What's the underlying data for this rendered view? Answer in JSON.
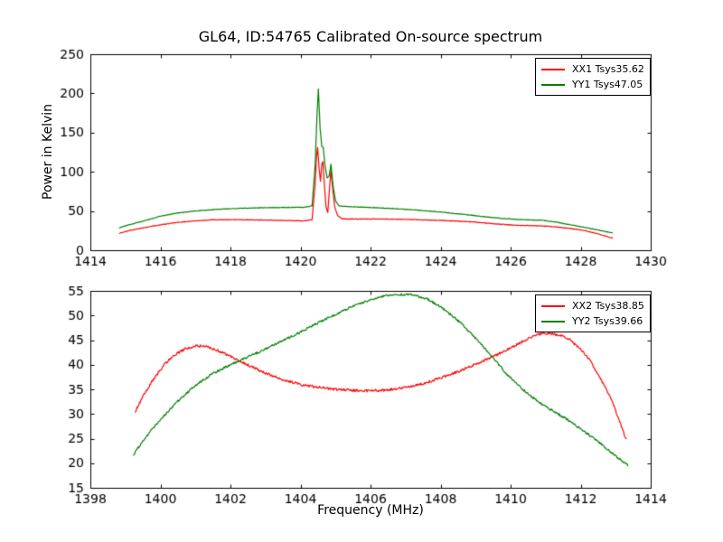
{
  "figure": {
    "title": "GL64, ID:54765 Calibrated On-source spectrum",
    "background_color": "#ffffff",
    "axes_color": "#000000",
    "xx_color": "#ff0000",
    "yy_color": "#008000"
  },
  "chart_data": [
    {
      "type": "line",
      "panel": "top",
      "xlabel": "",
      "ylabel": "Power in Kelvin",
      "xlim": [
        1414,
        1430
      ],
      "ylim": [
        0,
        250
      ],
      "xticks": [
        1414,
        1416,
        1418,
        1420,
        1422,
        1424,
        1426,
        1428,
        1430
      ],
      "yticks": [
        0,
        50,
        100,
        150,
        200,
        250
      ],
      "grid": false,
      "legend_position": "upper right",
      "series": [
        {
          "name": "XX1 Tsys35.62",
          "color": "#ff0000",
          "noise": 0.3,
          "points": [
            [
              1414.82,
              21.5
            ],
            [
              1415.1,
              25
            ],
            [
              1415.5,
              28.5
            ],
            [
              1416,
              32.5
            ],
            [
              1416.5,
              35.5
            ],
            [
              1417,
              37.5
            ],
            [
              1417.5,
              38.8
            ],
            [
              1418,
              39
            ],
            [
              1418.7,
              38.7
            ],
            [
              1419.4,
              38
            ],
            [
              1420.1,
              37.4
            ],
            [
              1420.33,
              39
            ],
            [
              1420.42,
              85
            ],
            [
              1420.46,
              120
            ],
            [
              1420.49,
              131
            ],
            [
              1420.53,
              105
            ],
            [
              1420.57,
              88
            ],
            [
              1420.61,
              110
            ],
            [
              1420.64,
              113
            ],
            [
              1420.68,
              85
            ],
            [
              1420.73,
              55
            ],
            [
              1420.78,
              48
            ],
            [
              1420.83,
              80
            ],
            [
              1420.87,
              102
            ],
            [
              1420.92,
              78
            ],
            [
              1420.98,
              55
            ],
            [
              1421.06,
              44
            ],
            [
              1421.2,
              40
            ],
            [
              1421.6,
              39.8
            ],
            [
              1422.2,
              39.9
            ],
            [
              1422.9,
              39.4
            ],
            [
              1423.6,
              38.6
            ],
            [
              1424.3,
              37.5
            ],
            [
              1424.9,
              36.2
            ],
            [
              1425.5,
              33.8
            ],
            [
              1426.1,
              32
            ],
            [
              1426.7,
              31.3
            ],
            [
              1427.2,
              30.2
            ],
            [
              1427.7,
              27.8
            ],
            [
              1428.1,
              25
            ],
            [
              1428.5,
              20.8
            ],
            [
              1428.92,
              15.3
            ]
          ]
        },
        {
          "name": "YY1 Tsys47.05",
          "color": "#008000",
          "noise": 0.3,
          "points": [
            [
              1414.82,
              28.5
            ],
            [
              1415.1,
              32.5
            ],
            [
              1415.5,
              37
            ],
            [
              1416,
              43.5
            ],
            [
              1416.5,
              47.5
            ],
            [
              1417,
              50
            ],
            [
              1417.5,
              51.8
            ],
            [
              1418,
              53
            ],
            [
              1418.7,
              54
            ],
            [
              1419.4,
              54.5
            ],
            [
              1420.1,
              54.8
            ],
            [
              1420.33,
              56.5
            ],
            [
              1420.42,
              110
            ],
            [
              1420.47,
              170
            ],
            [
              1420.51,
              206
            ],
            [
              1420.56,
              155
            ],
            [
              1420.61,
              132
            ],
            [
              1420.65,
              131
            ],
            [
              1420.7,
              108
            ],
            [
              1420.76,
              92
            ],
            [
              1420.82,
              95
            ],
            [
              1420.87,
              110
            ],
            [
              1420.93,
              82
            ],
            [
              1421,
              63
            ],
            [
              1421.1,
              56.5
            ],
            [
              1421.4,
              55.6
            ],
            [
              1422,
              54.5
            ],
            [
              1422.7,
              53
            ],
            [
              1423.4,
              51
            ],
            [
              1424,
              48.7
            ],
            [
              1424.6,
              46
            ],
            [
              1425.2,
              43
            ],
            [
              1425.8,
              40.3
            ],
            [
              1426.4,
              38.8
            ],
            [
              1426.9,
              38.2
            ],
            [
              1427.3,
              35.8
            ],
            [
              1427.8,
              31.8
            ],
            [
              1428.3,
              27.5
            ],
            [
              1428.7,
              24
            ],
            [
              1428.92,
              22
            ]
          ]
        }
      ]
    },
    {
      "type": "line",
      "panel": "bottom",
      "xlabel": "Frequency (MHz)",
      "ylabel": "",
      "xlim": [
        1398,
        1414
      ],
      "ylim": [
        15,
        55
      ],
      "xticks": [
        1398,
        1400,
        1402,
        1404,
        1406,
        1408,
        1410,
        1412,
        1414
      ],
      "yticks": [
        15,
        20,
        25,
        30,
        35,
        40,
        45,
        50,
        55
      ],
      "grid": false,
      "legend_position": "upper right",
      "series": [
        {
          "name": "XX2 Tsys38.85",
          "color": "#ff0000",
          "noise": 0.25,
          "points": [
            [
              1399.27,
              30.3
            ],
            [
              1399.5,
              33.5
            ],
            [
              1399.8,
              37
            ],
            [
              1400.1,
              40
            ],
            [
              1400.4,
              42
            ],
            [
              1400.7,
              43.2
            ],
            [
              1401,
              43.8
            ],
            [
              1401.3,
              43.7
            ],
            [
              1401.6,
              43
            ],
            [
              1402,
              41.7
            ],
            [
              1402.5,
              39.9
            ],
            [
              1403,
              38.3
            ],
            [
              1403.5,
              37
            ],
            [
              1404,
              36
            ],
            [
              1404.5,
              35.4
            ],
            [
              1405,
              35
            ],
            [
              1405.5,
              34.8
            ],
            [
              1406,
              34.7
            ],
            [
              1406.5,
              34.9
            ],
            [
              1407,
              35.4
            ],
            [
              1407.5,
              36.2
            ],
            [
              1408,
              37.3
            ],
            [
              1408.5,
              38.6
            ],
            [
              1409,
              40.1
            ],
            [
              1409.5,
              41.7
            ],
            [
              1410,
              43.4
            ],
            [
              1410.4,
              45
            ],
            [
              1410.8,
              46.2
            ],
            [
              1411.1,
              46.4
            ],
            [
              1411.4,
              46
            ],
            [
              1411.7,
              45
            ],
            [
              1412,
              43.2
            ],
            [
              1412.3,
              40.5
            ],
            [
              1412.6,
              36.8
            ],
            [
              1412.9,
              32.5
            ],
            [
              1413.1,
              28.8
            ],
            [
              1413.3,
              24.7
            ]
          ]
        },
        {
          "name": "YY2 Tsys39.66",
          "color": "#008000",
          "noise": 0.22,
          "points": [
            [
              1399.23,
              21.7
            ],
            [
              1399.5,
              24.5
            ],
            [
              1399.8,
              27.2
            ],
            [
              1400.1,
              29.6
            ],
            [
              1400.5,
              32.6
            ],
            [
              1401,
              35.8
            ],
            [
              1401.5,
              38.2
            ],
            [
              1402,
              40
            ],
            [
              1402.5,
              41.6
            ],
            [
              1403,
              43.2
            ],
            [
              1403.5,
              44.9
            ],
            [
              1404,
              46.6
            ],
            [
              1404.5,
              48.5
            ],
            [
              1405,
              50.2
            ],
            [
              1405.5,
              51.9
            ],
            [
              1406,
              53.2
            ],
            [
              1406.4,
              54
            ],
            [
              1406.8,
              54.3
            ],
            [
              1407.2,
              54.2
            ],
            [
              1407.6,
              53.4
            ],
            [
              1408,
              51.8
            ],
            [
              1408.4,
              49.6
            ],
            [
              1408.8,
              46.9
            ],
            [
              1409.2,
              43.8
            ],
            [
              1409.6,
              40.6
            ],
            [
              1409.9,
              38
            ],
            [
              1410.2,
              35.9
            ],
            [
              1410.6,
              33.5
            ],
            [
              1411,
              31.5
            ],
            [
              1411.5,
              29.4
            ],
            [
              1412,
              27
            ],
            [
              1412.4,
              24.9
            ],
            [
              1412.8,
              22.6
            ],
            [
              1413.1,
              20.9
            ],
            [
              1413.35,
              19.6
            ]
          ]
        }
      ]
    }
  ]
}
